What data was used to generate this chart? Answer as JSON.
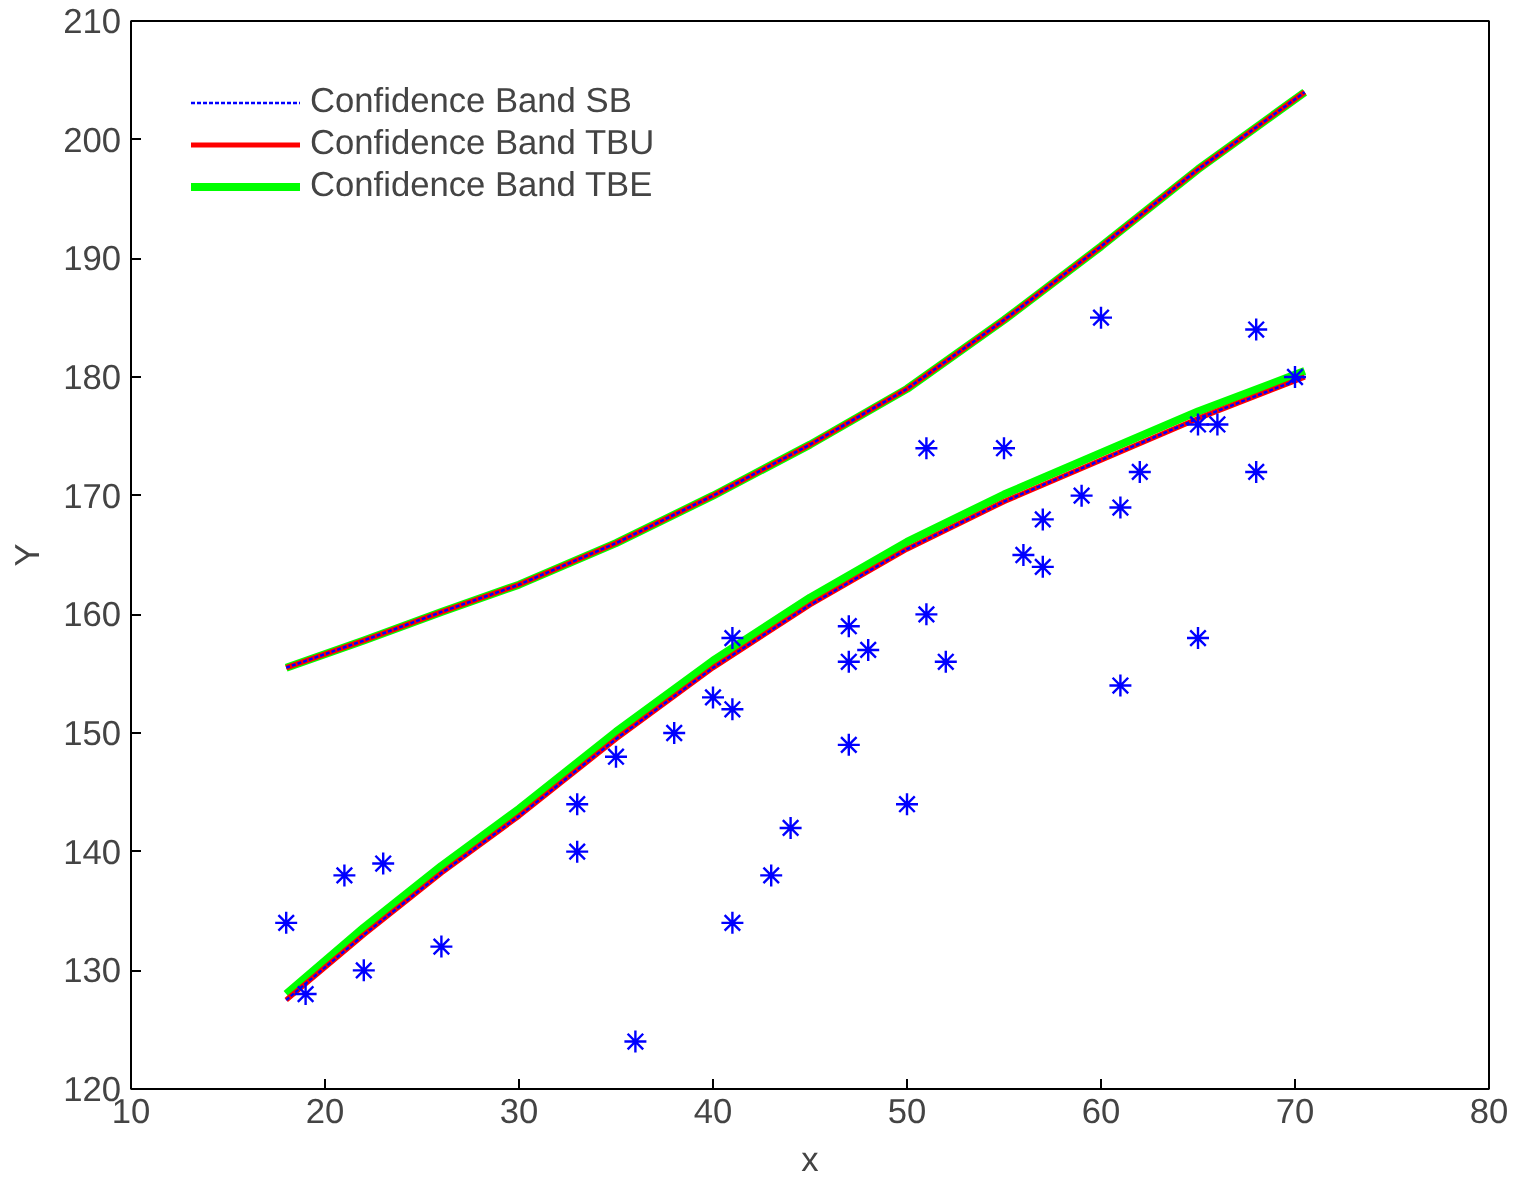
{
  "chart_data": {
    "type": "scatter",
    "xlabel": "x",
    "ylabel": "Y",
    "xlim": [
      10,
      80
    ],
    "xticks": [
      10,
      20,
      30,
      40,
      50,
      60,
      70,
      80
    ],
    "ylim": [
      120,
      210
    ],
    "yticks": [
      120,
      130,
      140,
      150,
      160,
      170,
      180,
      190,
      200,
      210
    ],
    "grid": false,
    "legend": "top left",
    "series": [
      {
        "name": "Confidence Band SB",
        "type": "line",
        "line_style": "dotted",
        "color": "#0000ff",
        "x": [
          18,
          22,
          26,
          30,
          35,
          40,
          45,
          50,
          55,
          60,
          65,
          70.5
        ],
        "values": [
          155.5,
          157.8,
          160.2,
          162.5,
          166,
          170,
          174.3,
          179,
          184.8,
          191,
          197.5,
          204
        ]
      },
      {
        "type": "line",
        "line_style": "dotted",
        "color": "#0000ff",
        "x": [
          18,
          22,
          26,
          30,
          35,
          40,
          45,
          50,
          55,
          60,
          65,
          70.5
        ],
        "values": [
          127.5,
          133,
          138.2,
          143,
          149.5,
          155.5,
          160.8,
          165.5,
          169.5,
          173,
          176.5,
          180
        ]
      },
      {
        "name": "Confidence Band TBU",
        "type": "line",
        "line_style": "solid",
        "color": "#ff0000",
        "x": [
          18,
          22,
          26,
          30,
          35,
          40,
          45,
          50,
          55,
          60,
          65,
          70.5
        ],
        "values": [
          155.5,
          157.8,
          160.2,
          162.5,
          166,
          170,
          174.3,
          179,
          184.8,
          191,
          197.5,
          204
        ]
      },
      {
        "type": "line",
        "line_style": "solid",
        "color": "#ff0000",
        "x": [
          18,
          22,
          26,
          30,
          35,
          40,
          45,
          50,
          55,
          60,
          65,
          70.5
        ],
        "values": [
          127.5,
          133,
          138.2,
          143,
          149.5,
          155.5,
          160.8,
          165.5,
          169.5,
          173,
          176.5,
          180
        ]
      },
      {
        "name": "Confidence Band TBE",
        "type": "line",
        "line_style": "solid",
        "color": "#00ff00",
        "x": [
          18,
          22,
          26,
          30,
          35,
          40,
          45,
          50,
          55,
          60,
          65,
          70.5
        ],
        "values": [
          155.5,
          157.8,
          160.2,
          162.5,
          166,
          170,
          174.3,
          179,
          184.8,
          191,
          197.5,
          204
        ]
      },
      {
        "type": "line",
        "line_style": "solid",
        "color": "#00ff00",
        "x": [
          18,
          22,
          26,
          30,
          35,
          40,
          45,
          50,
          55,
          60,
          65,
          70.5
        ],
        "values": [
          128,
          133.6,
          138.8,
          143.6,
          150.1,
          156.1,
          161.4,
          166.1,
          170.1,
          173.6,
          177.1,
          180.5
        ]
      },
      {
        "marker": "cross",
        "color": "#0000ff",
        "x": [
          18,
          19,
          21,
          22,
          23,
          26,
          33,
          33,
          35,
          36,
          38,
          40,
          41,
          41,
          41,
          43,
          44,
          47,
          47,
          47,
          48,
          50,
          51,
          51,
          52,
          55,
          56,
          57,
          57,
          59,
          60,
          61,
          61,
          62,
          65,
          65,
          66,
          68,
          68,
          70
        ],
        "values": [
          134,
          128,
          138,
          130,
          139,
          132,
          144,
          140,
          148,
          124,
          150,
          153,
          158,
          152,
          134,
          138,
          142,
          159,
          156,
          149,
          157,
          144,
          174,
          160,
          156,
          174,
          165,
          168,
          164,
          170,
          185,
          169,
          154,
          172,
          176,
          158,
          176,
          184,
          172,
          180
        ]
      }
    ]
  }
}
